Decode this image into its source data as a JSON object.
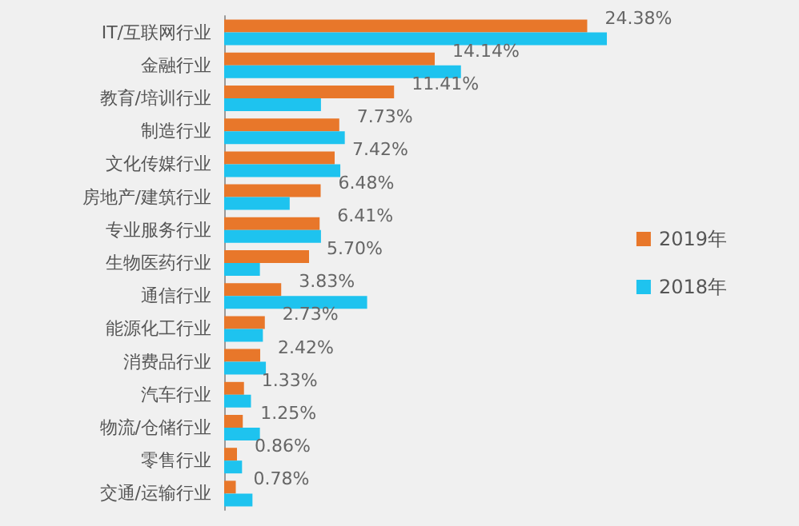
{
  "chart_data": {
    "type": "bar",
    "orientation": "horizontal",
    "categories": [
      "IT/互联网行业",
      "金融行业",
      "教育/培训行业",
      "制造行业",
      "文化传媒行业",
      "房地产/建筑行业",
      "专业服务行业",
      "生物医药行业",
      "通信行业",
      "能源化工行业",
      "消费品行业",
      "汽车行业",
      "物流/仓储行业",
      "零售行业",
      "交通/运输行业"
    ],
    "series": [
      {
        "name": "2019年",
        "color": "#e8772a",
        "values": [
          24.38,
          14.14,
          11.41,
          7.73,
          7.42,
          6.48,
          6.41,
          5.7,
          3.83,
          2.73,
          2.42,
          1.33,
          1.25,
          0.86,
          0.78
        ],
        "value_labels": [
          "24.38%",
          "14.14%",
          "11.41%",
          "7.73%",
          "7.42%",
          "6.48%",
          "6.41%",
          "5.70%",
          "3.83%",
          "2.73%",
          "2.42%",
          "1.33%",
          "1.25%",
          "0.86%",
          "0.78%"
        ]
      },
      {
        "name": "2018年",
        "color": "#1ec3ef",
        "values": [
          25.7,
          15.9,
          6.5,
          8.1,
          7.8,
          4.4,
          6.5,
          2.4,
          9.6,
          2.6,
          2.8,
          1.8,
          2.4,
          1.2,
          1.9
        ]
      }
    ],
    "legend": "right",
    "grid": false
  }
}
